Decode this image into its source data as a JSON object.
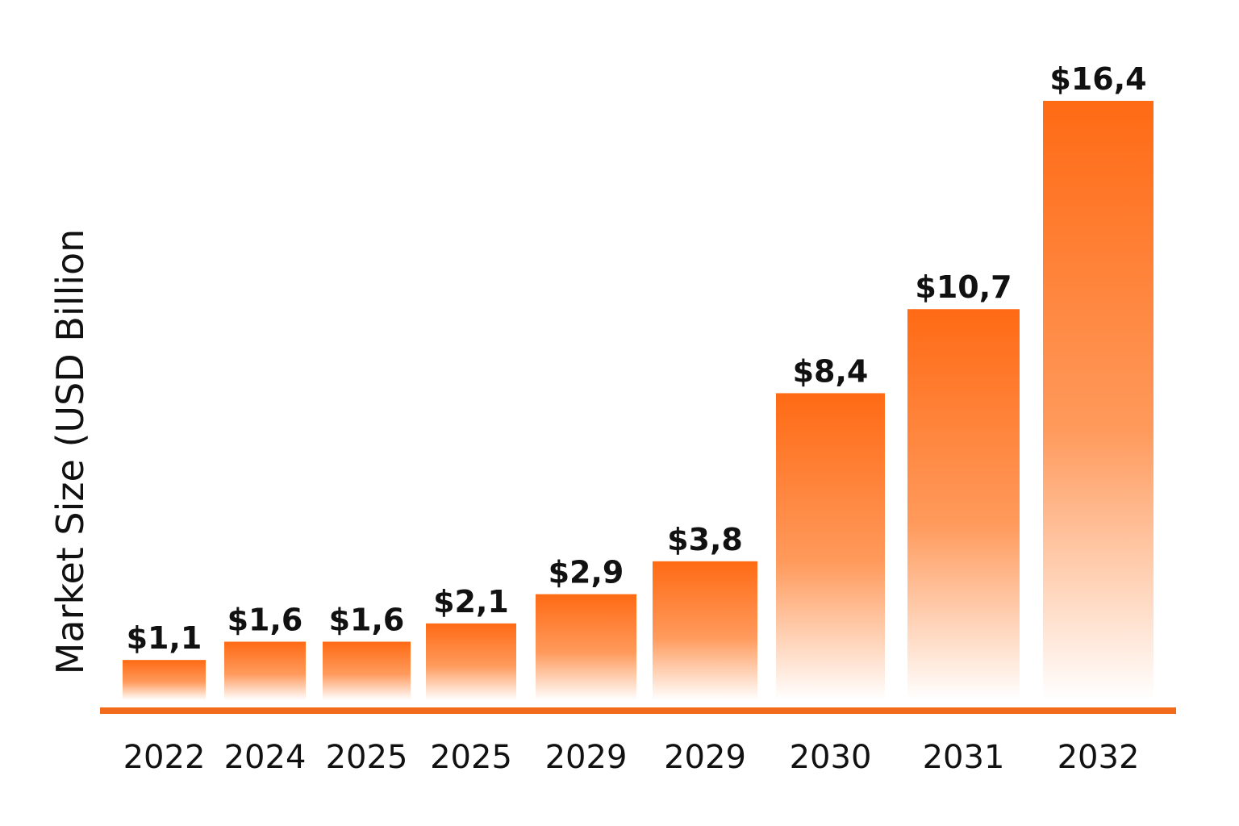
{
  "chart_data": {
    "type": "bar",
    "title": "",
    "xlabel": "",
    "ylabel": "Market Size (USD Billion",
    "categories": [
      "2022",
      "2024",
      "2025",
      "2025",
      "2029",
      "2029",
      "2030",
      "2031",
      "2032"
    ],
    "values": [
      1.1,
      1.6,
      1.6,
      2.1,
      2.9,
      3.8,
      8.4,
      10.7,
      16.4
    ],
    "value_labels": [
      "$1,1",
      "$1,6",
      "$1,6",
      "$2,1",
      "$2,9",
      "$3,8",
      "$8,4",
      "$10,7",
      "$16,4"
    ],
    "grid": false,
    "legend": "none",
    "colors": {
      "bar_top": "#ff6a14",
      "bar_bottom": "#ffffff",
      "axis": "#f26b1d"
    }
  }
}
